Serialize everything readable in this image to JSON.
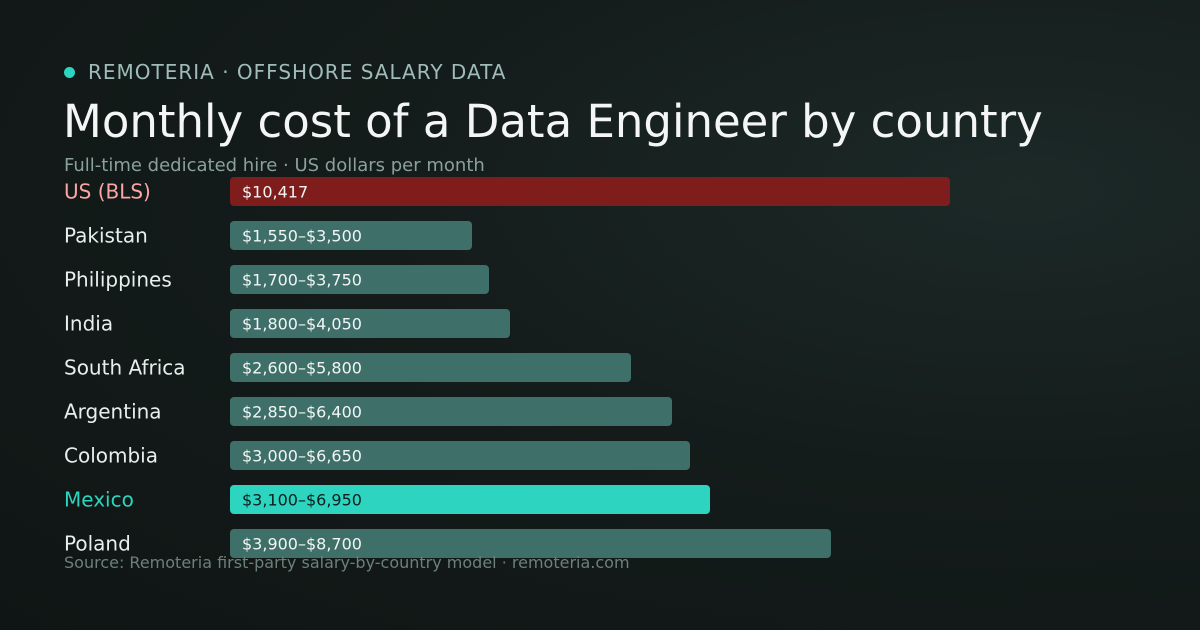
{
  "header": {
    "brand": "REMOTERIA · OFFSHORE SALARY DATA",
    "title": "Monthly cost of a Data Engineer by country",
    "subtitle": "Full-time dedicated hire · US dollars per month"
  },
  "footer": {
    "source": "Source: Remoteria first-party salary-by-country model · remoteria.com"
  },
  "colors": {
    "accent": "#2dd4bf",
    "us_bar": "#7f1d1d",
    "us_label": "#fca5a5",
    "default_bar": "#3e6f69",
    "default_label": "#e8eeec"
  },
  "chart_data": {
    "type": "bar",
    "orientation": "horizontal",
    "unit": "US dollars per month",
    "categories": [
      "US (BLS)",
      "Pakistan",
      "Philippines",
      "India",
      "South Africa",
      "Argentina",
      "Colombia",
      "Mexico",
      "Poland"
    ],
    "ranges": [
      {
        "low": null,
        "high": 10417,
        "label": "$10,417",
        "style": "us"
      },
      {
        "low": 1550,
        "high": 3500,
        "label": "$1,550–$3,500",
        "style": "default"
      },
      {
        "low": 1700,
        "high": 3750,
        "label": "$1,700–$3,750",
        "style": "default"
      },
      {
        "low": 1800,
        "high": 4050,
        "label": "$1,800–$4,050",
        "style": "default"
      },
      {
        "low": 2600,
        "high": 5800,
        "label": "$2,600–$5,800",
        "style": "default"
      },
      {
        "low": 2850,
        "high": 6400,
        "label": "$2,850–$6,400",
        "style": "default"
      },
      {
        "low": 3000,
        "high": 6650,
        "label": "$3,000–$6,650",
        "style": "default"
      },
      {
        "low": 3100,
        "high": 6950,
        "label": "$3,100–$6,950",
        "style": "highlight"
      },
      {
        "low": 3900,
        "high": 8700,
        "label": "$3,900–$8,700",
        "style": "default"
      }
    ],
    "xlim": [
      0,
      10417
    ],
    "grid": false,
    "legend": "none"
  }
}
